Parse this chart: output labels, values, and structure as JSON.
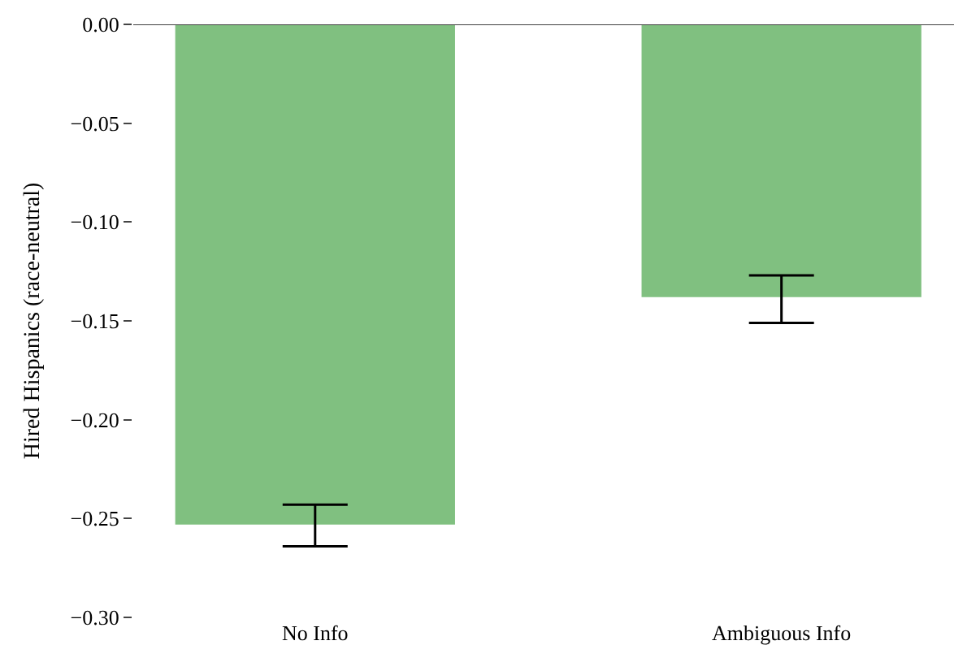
{
  "chart_data": {
    "type": "bar",
    "ylabel": "Hired Hispanics (race-neutral)",
    "categories": [
      "No Info",
      "Ambiguous Info"
    ],
    "values": [
      -0.253,
      -0.138
    ],
    "errors": [
      [
        -0.264,
        -0.243
      ],
      [
        -0.151,
        -0.127
      ]
    ],
    "color": "#80c080",
    "ylim": [
      -0.3,
      0.0
    ],
    "yticks": [
      {
        "value": 0.0,
        "label": "0.00"
      },
      {
        "value": -0.05,
        "label": "−0.05"
      },
      {
        "value": -0.1,
        "label": "−0.10"
      },
      {
        "value": -0.15,
        "label": "−0.15"
      },
      {
        "value": -0.2,
        "label": "−0.20"
      },
      {
        "value": -0.25,
        "label": "−0.25"
      },
      {
        "value": -0.3,
        "label": "−0.30"
      }
    ],
    "ref_lines": [
      {
        "axis": "y",
        "value": 0.0,
        "color": "#404040"
      }
    ],
    "legend": false
  }
}
